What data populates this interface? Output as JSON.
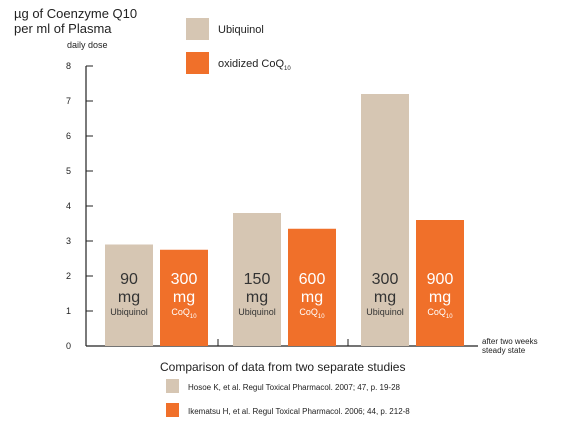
{
  "chart_data": {
    "type": "bar",
    "ylabel_lines": [
      "µg of Coenzyme Q10",
      "per ml of Plasma"
    ],
    "dose_label": "daily dose",
    "ylim": [
      0,
      8
    ],
    "yticks": [
      0,
      1,
      2,
      3,
      4,
      5,
      6,
      7,
      8
    ],
    "legend": [
      {
        "name": "Ubiquinol",
        "color": "#d6c6b3"
      },
      {
        "name": "oxidized CoQ",
        "sub": "10",
        "color": "#f0702a"
      }
    ],
    "groups": [
      {
        "bars": [
          {
            "series": "Ubiquinol",
            "value": 2.9,
            "dose": "90",
            "unit": "mg",
            "label": "Ubiquinol",
            "label_sub": ""
          },
          {
            "series": "oxidized CoQ10",
            "value": 2.75,
            "dose": "300",
            "unit": "mg",
            "label": "CoQ",
            "label_sub": "10"
          }
        ]
      },
      {
        "bars": [
          {
            "series": "Ubiquinol",
            "value": 3.8,
            "dose": "150",
            "unit": "mg",
            "label": "Ubiquinol",
            "label_sub": ""
          },
          {
            "series": "oxidized CoQ10",
            "value": 3.35,
            "dose": "600",
            "unit": "mg",
            "label": "CoQ",
            "label_sub": "10"
          }
        ]
      },
      {
        "bars": [
          {
            "series": "Ubiquinol",
            "value": 7.2,
            "dose": "300",
            "unit": "mg",
            "label": "Ubiquinol",
            "label_sub": ""
          },
          {
            "series": "oxidized CoQ10",
            "value": 3.6,
            "dose": "900",
            "unit": "mg",
            "label": "CoQ",
            "label_sub": "10"
          }
        ]
      }
    ],
    "endnote_lines": [
      "after two weeks",
      "steady state"
    ],
    "subtitle": "Comparison of data from two separate studies",
    "footnotes": [
      {
        "text": "Hosoe K, et al. Regul Toxical Pharmacol. 2007; 47, p. 19-28",
        "color": "#d6c6b3"
      },
      {
        "text": "Ikematsu H, et al. Regul Toxical Pharmacol. 2006; 44, p. 212-8",
        "color": "#f0702a"
      }
    ]
  }
}
